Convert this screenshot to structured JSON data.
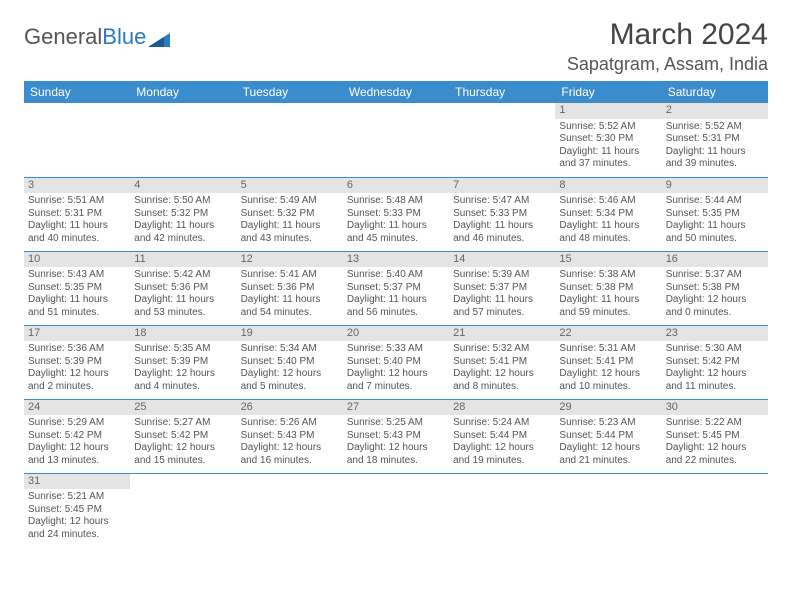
{
  "brand": {
    "part1": "General",
    "part2": "Blue"
  },
  "title": "March 2024",
  "location": "Sapatgram, Assam, India",
  "colors": {
    "header_bg": "#3b8ccc",
    "header_text": "#ffffff",
    "daynum_bg": "#e4e4e4",
    "row_border": "#3b8ccc",
    "text": "#555555"
  },
  "day_headers": [
    "Sunday",
    "Monday",
    "Tuesday",
    "Wednesday",
    "Thursday",
    "Friday",
    "Saturday"
  ],
  "weeks": [
    [
      null,
      null,
      null,
      null,
      null,
      {
        "n": "1",
        "sr": "5:52 AM",
        "ss": "5:30 PM",
        "dl": "11 hours and 37 minutes."
      },
      {
        "n": "2",
        "sr": "5:52 AM",
        "ss": "5:31 PM",
        "dl": "11 hours and 39 minutes."
      }
    ],
    [
      {
        "n": "3",
        "sr": "5:51 AM",
        "ss": "5:31 PM",
        "dl": "11 hours and 40 minutes."
      },
      {
        "n": "4",
        "sr": "5:50 AM",
        "ss": "5:32 PM",
        "dl": "11 hours and 42 minutes."
      },
      {
        "n": "5",
        "sr": "5:49 AM",
        "ss": "5:32 PM",
        "dl": "11 hours and 43 minutes."
      },
      {
        "n": "6",
        "sr": "5:48 AM",
        "ss": "5:33 PM",
        "dl": "11 hours and 45 minutes."
      },
      {
        "n": "7",
        "sr": "5:47 AM",
        "ss": "5:33 PM",
        "dl": "11 hours and 46 minutes."
      },
      {
        "n": "8",
        "sr": "5:46 AM",
        "ss": "5:34 PM",
        "dl": "11 hours and 48 minutes."
      },
      {
        "n": "9",
        "sr": "5:44 AM",
        "ss": "5:35 PM",
        "dl": "11 hours and 50 minutes."
      }
    ],
    [
      {
        "n": "10",
        "sr": "5:43 AM",
        "ss": "5:35 PM",
        "dl": "11 hours and 51 minutes."
      },
      {
        "n": "11",
        "sr": "5:42 AM",
        "ss": "5:36 PM",
        "dl": "11 hours and 53 minutes."
      },
      {
        "n": "12",
        "sr": "5:41 AM",
        "ss": "5:36 PM",
        "dl": "11 hours and 54 minutes."
      },
      {
        "n": "13",
        "sr": "5:40 AM",
        "ss": "5:37 PM",
        "dl": "11 hours and 56 minutes."
      },
      {
        "n": "14",
        "sr": "5:39 AM",
        "ss": "5:37 PM",
        "dl": "11 hours and 57 minutes."
      },
      {
        "n": "15",
        "sr": "5:38 AM",
        "ss": "5:38 PM",
        "dl": "11 hours and 59 minutes."
      },
      {
        "n": "16",
        "sr": "5:37 AM",
        "ss": "5:38 PM",
        "dl": "12 hours and 0 minutes."
      }
    ],
    [
      {
        "n": "17",
        "sr": "5:36 AM",
        "ss": "5:39 PM",
        "dl": "12 hours and 2 minutes."
      },
      {
        "n": "18",
        "sr": "5:35 AM",
        "ss": "5:39 PM",
        "dl": "12 hours and 4 minutes."
      },
      {
        "n": "19",
        "sr": "5:34 AM",
        "ss": "5:40 PM",
        "dl": "12 hours and 5 minutes."
      },
      {
        "n": "20",
        "sr": "5:33 AM",
        "ss": "5:40 PM",
        "dl": "12 hours and 7 minutes."
      },
      {
        "n": "21",
        "sr": "5:32 AM",
        "ss": "5:41 PM",
        "dl": "12 hours and 8 minutes."
      },
      {
        "n": "22",
        "sr": "5:31 AM",
        "ss": "5:41 PM",
        "dl": "12 hours and 10 minutes."
      },
      {
        "n": "23",
        "sr": "5:30 AM",
        "ss": "5:42 PM",
        "dl": "12 hours and 11 minutes."
      }
    ],
    [
      {
        "n": "24",
        "sr": "5:29 AM",
        "ss": "5:42 PM",
        "dl": "12 hours and 13 minutes."
      },
      {
        "n": "25",
        "sr": "5:27 AM",
        "ss": "5:42 PM",
        "dl": "12 hours and 15 minutes."
      },
      {
        "n": "26",
        "sr": "5:26 AM",
        "ss": "5:43 PM",
        "dl": "12 hours and 16 minutes."
      },
      {
        "n": "27",
        "sr": "5:25 AM",
        "ss": "5:43 PM",
        "dl": "12 hours and 18 minutes."
      },
      {
        "n": "28",
        "sr": "5:24 AM",
        "ss": "5:44 PM",
        "dl": "12 hours and 19 minutes."
      },
      {
        "n": "29",
        "sr": "5:23 AM",
        "ss": "5:44 PM",
        "dl": "12 hours and 21 minutes."
      },
      {
        "n": "30",
        "sr": "5:22 AM",
        "ss": "5:45 PM",
        "dl": "12 hours and 22 minutes."
      }
    ],
    [
      {
        "n": "31",
        "sr": "5:21 AM",
        "ss": "5:45 PM",
        "dl": "12 hours and 24 minutes."
      },
      null,
      null,
      null,
      null,
      null,
      null
    ]
  ],
  "labels": {
    "sunrise": "Sunrise: ",
    "sunset": "Sunset: ",
    "daylight": "Daylight: "
  }
}
